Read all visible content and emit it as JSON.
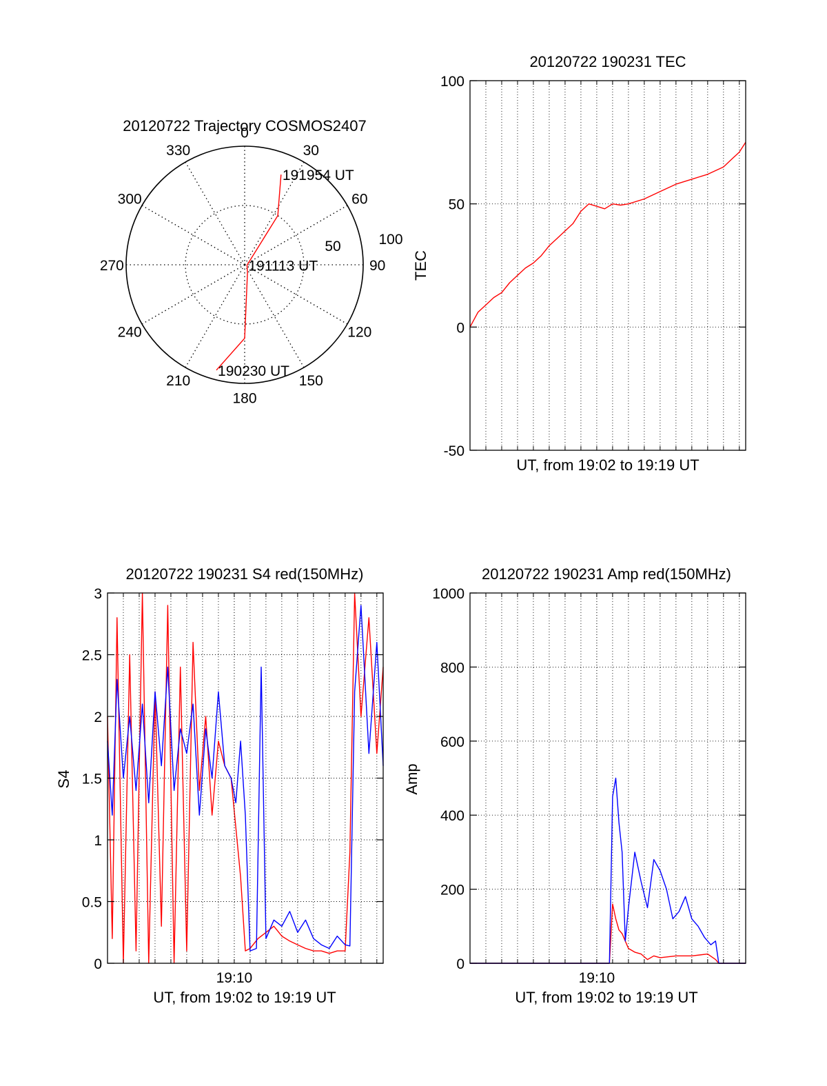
{
  "colors": {
    "red": "#ff0000",
    "blue": "#0000ff",
    "axis": "#000000",
    "grid": "#000000"
  },
  "chart_data": [
    {
      "type": "polar",
      "title": "20120722 Trajectory COSMOS2407",
      "angle_labels": [
        "0",
        "30",
        "60",
        "90",
        "120",
        "150",
        "180",
        "210",
        "240",
        "270",
        "300",
        "330"
      ],
      "radius_labels": [
        "50",
        "100"
      ],
      "radius_max": 100,
      "grid": true,
      "series": [
        {
          "color": "red",
          "points": [
            [
              195,
              92
            ],
            [
              180,
              62
            ],
            [
              160,
              7
            ],
            [
              100,
              2
            ],
            [
              34,
              50
            ],
            [
              22,
              82
            ]
          ]
        }
      ],
      "annotations": [
        {
          "text": "191954 UT",
          "az": 22,
          "r": 82
        },
        {
          "text": "191113 UT",
          "az": 100,
          "r": 2
        },
        {
          "text": "190230 UT",
          "az": 195,
          "r": 92
        }
      ]
    },
    {
      "type": "line",
      "title": "20120722 190231 TEC",
      "xlabel": "UT, from 19:02 to 19:19 UT",
      "ylabel": "TEC",
      "xlim": [
        0,
        17.4
      ],
      "ylim": [
        -50,
        100
      ],
      "yticks": [
        "-50",
        "0",
        "50",
        "100"
      ],
      "xticks": [],
      "grid": true,
      "series": [
        {
          "color": "red",
          "x": [
            0,
            0.5,
            1,
            1.5,
            2,
            2.5,
            3,
            3.5,
            4,
            4.5,
            5,
            5.5,
            6,
            6.5,
            7,
            7.5,
            8,
            8.5,
            9,
            9.5,
            10,
            11,
            12,
            13,
            14,
            15,
            16,
            16.5,
            17,
            17.4
          ],
          "y": [
            0,
            6,
            9,
            12,
            14,
            18,
            21,
            24,
            26,
            29,
            33,
            36,
            39,
            42,
            47,
            50,
            49,
            48,
            50,
            49.5,
            50,
            52,
            55,
            58,
            60,
            62,
            65,
            68,
            71,
            75
          ]
        }
      ]
    },
    {
      "type": "line",
      "title": "20120722 190231 S4 red(150MHz)",
      "xlabel": "UT, from 19:02 to 19:19 UT",
      "ylabel": "S4",
      "xlim": [
        0,
        17.4
      ],
      "ylim": [
        0,
        3
      ],
      "yticks": [
        "0",
        "0.5",
        "1",
        "1.5",
        "2",
        "2.5",
        "3"
      ],
      "xticks": [
        {
          "value": 8,
          "label": "19:10"
        }
      ],
      "grid": true,
      "series": [
        {
          "color": "red",
          "x": [
            0,
            0.3,
            0.6,
            1.0,
            1.4,
            1.8,
            2.2,
            2.6,
            3.0,
            3.4,
            3.8,
            4.2,
            4.6,
            5.0,
            5.4,
            5.8,
            6.2,
            6.6,
            7.0,
            7.4,
            7.8,
            8.1,
            8.4,
            8.7,
            9.0,
            9.5,
            10,
            10.5,
            11,
            11.5,
            12,
            12.5,
            13,
            13.5,
            14,
            14.5,
            15,
            15.3,
            15.6,
            16,
            16.5,
            17,
            17.4
          ],
          "y": [
            2.0,
            0.2,
            2.8,
            0.0,
            2.5,
            0.1,
            3.0,
            0.0,
            2.2,
            0.3,
            2.9,
            0.0,
            2.4,
            0.1,
            2.6,
            1.4,
            2.0,
            1.2,
            1.8,
            1.6,
            1.5,
            1.1,
            0.7,
            0.1,
            0.12,
            0.2,
            0.25,
            0.3,
            0.22,
            0.18,
            0.15,
            0.12,
            0.1,
            0.1,
            0.08,
            0.1,
            0.1,
            0.9,
            3.0,
            2.0,
            2.8,
            1.7,
            2.4
          ]
        },
        {
          "color": "blue",
          "x": [
            0,
            0.3,
            0.6,
            1.0,
            1.4,
            1.8,
            2.2,
            2.6,
            3.0,
            3.4,
            3.8,
            4.2,
            4.6,
            5.0,
            5.4,
            5.8,
            6.2,
            6.6,
            7.0,
            7.4,
            7.8,
            8.1,
            8.4,
            8.7,
            9.0,
            9.4,
            9.7,
            10,
            10.5,
            11,
            11.5,
            12,
            12.5,
            13,
            13.5,
            14,
            14.5,
            15,
            15.3,
            15.6,
            16,
            16.5,
            17,
            17.4
          ],
          "y": [
            1.8,
            1.2,
            2.3,
            1.5,
            2.0,
            1.4,
            2.1,
            1.3,
            2.2,
            1.6,
            2.4,
            1.4,
            1.9,
            1.7,
            2.1,
            1.2,
            1.9,
            1.5,
            2.2,
            1.6,
            1.5,
            1.3,
            1.8,
            1.2,
            0.1,
            0.12,
            2.4,
            0.2,
            0.35,
            0.3,
            0.42,
            0.25,
            0.35,
            0.2,
            0.15,
            0.12,
            0.22,
            0.15,
            0.14,
            2.2,
            2.9,
            1.7,
            2.6,
            1.6
          ]
        }
      ]
    },
    {
      "type": "line",
      "title": "20120722 190231 Amp red(150MHz)",
      "xlabel": "UT, from 19:02 to 19:19 UT",
      "ylabel": "Amp",
      "xlim": [
        0,
        17.4
      ],
      "ylim": [
        0,
        1000
      ],
      "yticks": [
        "0",
        "200",
        "400",
        "600",
        "800",
        "1000"
      ],
      "xticks": [
        {
          "value": 8,
          "label": "19:10"
        }
      ],
      "grid": true,
      "series": [
        {
          "color": "red",
          "x": [
            0,
            4,
            8.6,
            8.8,
            9.0,
            9.2,
            9.4,
            9.6,
            9.8,
            10.0,
            10.4,
            10.8,
            11.2,
            11.6,
            12.0,
            13,
            14,
            15,
            15.5,
            15.7,
            16,
            17.4
          ],
          "y": [
            0,
            0,
            0,
            0,
            160,
            120,
            90,
            80,
            60,
            40,
            30,
            25,
            10,
            20,
            15,
            20,
            20,
            25,
            10,
            0,
            0,
            0
          ]
        },
        {
          "color": "blue",
          "x": [
            0,
            4,
            8.6,
            8.8,
            9.0,
            9.2,
            9.4,
            9.6,
            9.8,
            10.0,
            10.4,
            10.8,
            11.2,
            11.6,
            12.0,
            12.4,
            12.8,
            13.2,
            13.6,
            14,
            14.4,
            14.8,
            15.2,
            15.5,
            15.7,
            16,
            17.4
          ],
          "y": [
            0,
            0,
            0,
            0,
            450,
            500,
            380,
            300,
            60,
            150,
            300,
            220,
            150,
            280,
            250,
            200,
            120,
            140,
            180,
            120,
            100,
            70,
            50,
            60,
            0,
            0,
            0
          ]
        }
      ]
    }
  ]
}
